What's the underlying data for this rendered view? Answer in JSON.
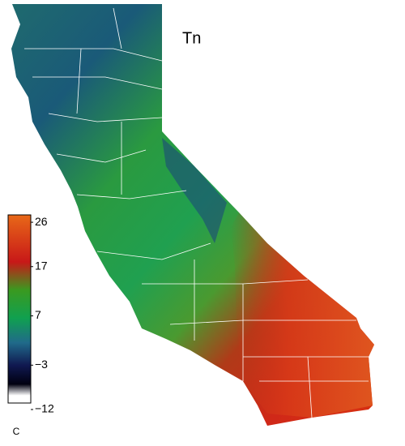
{
  "map": {
    "title": "Tn",
    "colorbar": {
      "ylim": [
        -12,
        27
      ],
      "ticks": [
        26,
        17,
        7,
        {
          "value": -3,
          "label": "−3"
        },
        {
          "value": -12,
          "label": "−12"
        }
      ],
      "unit": "C"
    }
  }
}
